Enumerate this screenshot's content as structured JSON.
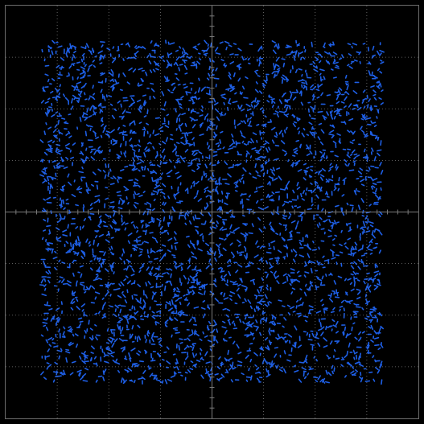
{
  "display": {
    "background_color": "#000000",
    "frame_color": "#6b6b6b",
    "graticule_color": "#7a7a7a",
    "trace_color": "#1e5fe6",
    "grid": true,
    "grid_divisions": 8,
    "minor_ticks_per_division": 5,
    "style": "oscilloscope-xy"
  },
  "chart_data": {
    "type": "scatter",
    "title": "",
    "xlabel": "",
    "ylabel": "",
    "xlim": [
      -4,
      4
    ],
    "ylim": [
      -4,
      4
    ],
    "grid": true,
    "series": [
      {
        "distribution": "uniform",
        "x_range": [
          -3.3,
          3.3
        ],
        "y_range": [
          -3.3,
          3.3
        ],
        "color": "#1e5fe6"
      }
    ]
  }
}
